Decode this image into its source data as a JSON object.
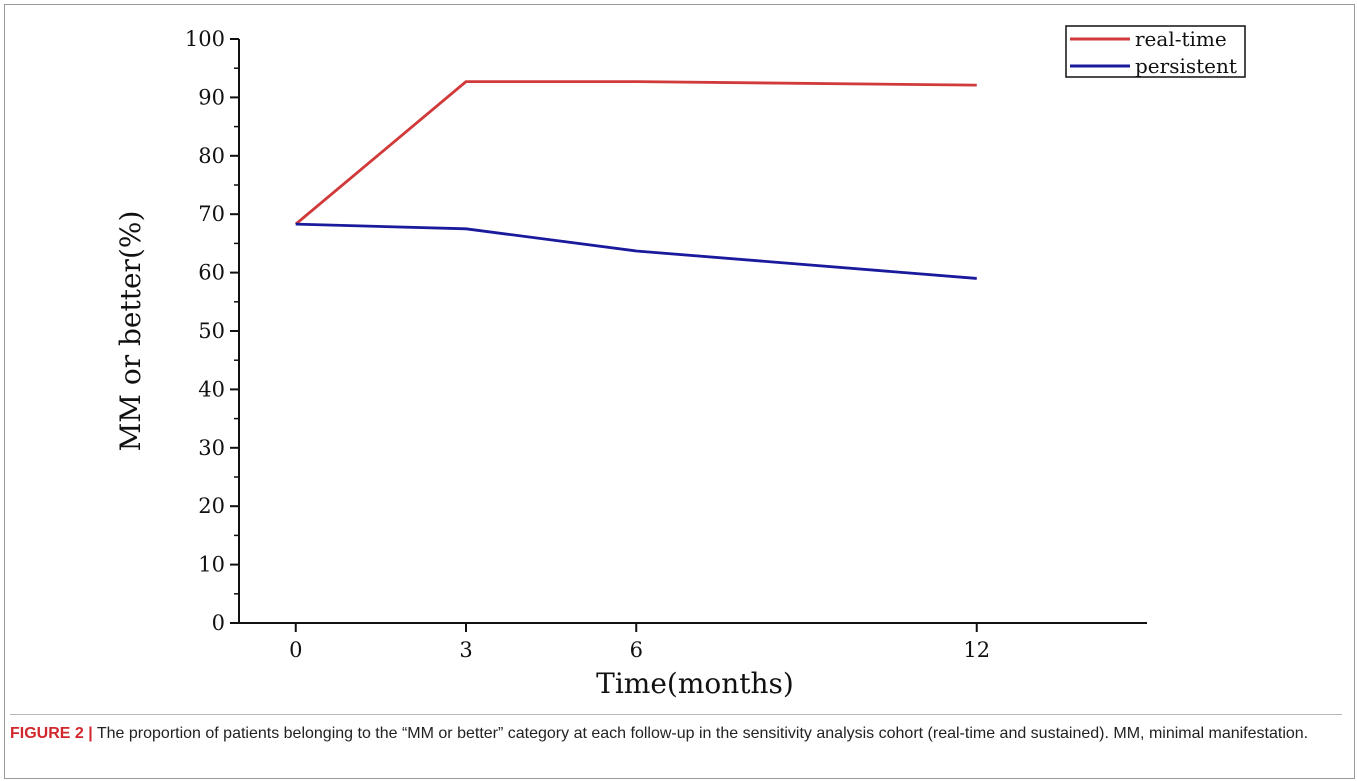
{
  "chart_data": {
    "type": "line",
    "x": [
      0,
      3,
      6,
      12
    ],
    "xlabel": "Time(months)",
    "ylabel": "MM or better(%)",
    "xlim": [
      -1,
      15
    ],
    "ylim": [
      0,
      100
    ],
    "xticks": [
      0,
      3,
      6,
      12
    ],
    "yticks": [
      0,
      10,
      20,
      30,
      40,
      50,
      60,
      70,
      80,
      90,
      100
    ],
    "grid": false,
    "legend_position": "top-right",
    "series": [
      {
        "name": "real-time",
        "color": "#d03a3a",
        "values": [
          68.3,
          92.7,
          92.7,
          92.1
        ]
      },
      {
        "name": "persistent",
        "color": "#1a1a9c",
        "values": [
          68.3,
          67.5,
          63.7,
          59.0
        ]
      }
    ]
  },
  "caption": {
    "label": "FIGURE 2 |",
    "text": " The proportion of patients belonging to the “MM or better” category at each follow-up in the sensitivity analysis cohort (real-time and sustained). MM, minimal manifestation."
  }
}
